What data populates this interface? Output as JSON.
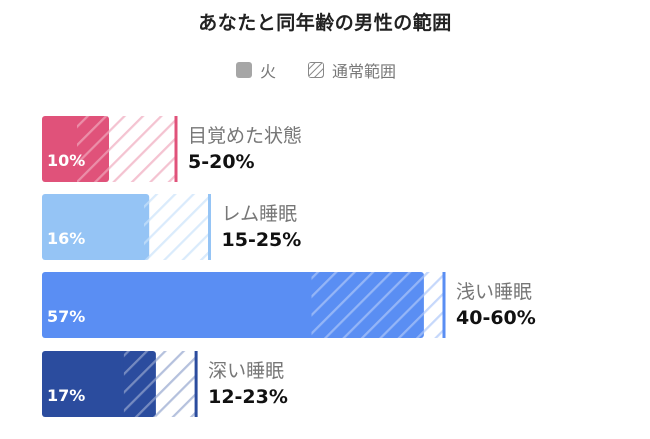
{
  "title": "あなたと同年齢の男性の範囲",
  "legend": {
    "actual_label": "火",
    "range_label": "通常範囲",
    "actual_color": "#a6a6a6"
  },
  "chart_data": {
    "type": "bar",
    "orientation": "horizontal",
    "title": "あなたと同年齢の男性の範囲",
    "value_unit": "%",
    "xlim": [
      0,
      100
    ],
    "series": [
      {
        "name": "火",
        "values": [
          10,
          16,
          57,
          17
        ]
      },
      {
        "name": "通常範囲",
        "ranges": [
          [
            5,
            20
          ],
          [
            15,
            25
          ],
          [
            40,
            60
          ],
          [
            12,
            23
          ]
        ]
      }
    ],
    "categories": [
      "目覚めた状態",
      "レム睡眠",
      "浅い睡眠",
      "深い睡眠"
    ],
    "bars": [
      {
        "category": "目覚めた状態",
        "value": 10,
        "value_label": "10%",
        "range": [
          5,
          20
        ],
        "range_label": "5-20%",
        "color": "#e0527a"
      },
      {
        "category": "レム睡眠",
        "value": 16,
        "value_label": "16%",
        "range": [
          15,
          25
        ],
        "range_label": "15-25%",
        "color": "#95c4f5"
      },
      {
        "category": "浅い睡眠",
        "value": 57,
        "value_label": "57%",
        "range": [
          40,
          60
        ],
        "range_label": "40-60%",
        "color": "#5a8ef3"
      },
      {
        "category": "深い睡眠",
        "value": 17,
        "value_label": "17%",
        "range": [
          12,
          23
        ],
        "range_label": "12-23%",
        "color": "#2b4c9e"
      }
    ]
  }
}
